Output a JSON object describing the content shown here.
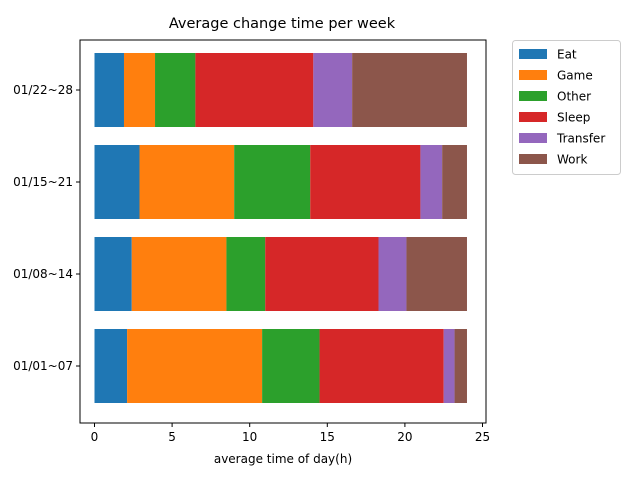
{
  "chart_data": {
    "type": "bar",
    "orientation": "horizontal",
    "stacked": true,
    "title": "Average change time per week",
    "xlabel": "average time of day(h)",
    "ylabel": "",
    "xlim": [
      0,
      25
    ],
    "xticks": [
      0,
      5,
      10,
      15,
      20,
      25
    ],
    "grid": false,
    "legend_position": "outside-right-top",
    "categories": [
      "01/01~07",
      "01/08~14",
      "01/15~21",
      "01/22~28"
    ],
    "series": [
      {
        "name": "Eat",
        "color": "#1f77b4",
        "values": [
          2.1,
          2.4,
          2.9,
          1.9
        ]
      },
      {
        "name": "Game",
        "color": "#ff7f0e",
        "values": [
          8.7,
          6.1,
          6.1,
          2.0
        ]
      },
      {
        "name": "Other",
        "color": "#2ca02c",
        "values": [
          3.7,
          2.5,
          4.9,
          2.6
        ]
      },
      {
        "name": "Sleep",
        "color": "#d62728",
        "values": [
          8.0,
          7.3,
          7.1,
          7.6
        ]
      },
      {
        "name": "Transfer",
        "color": "#9467bd",
        "values": [
          0.7,
          1.8,
          1.4,
          2.5
        ]
      },
      {
        "name": "Work",
        "color": "#8c564b",
        "values": [
          0.8,
          3.9,
          1.6,
          7.4
        ]
      }
    ]
  }
}
